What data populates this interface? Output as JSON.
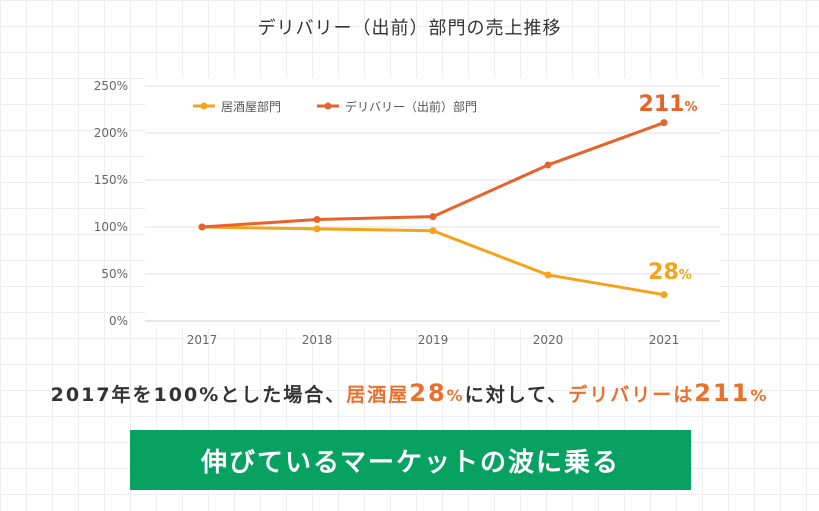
{
  "chart_data": {
    "type": "line",
    "title": "デリバリー（出前）部門の売上推移",
    "categories": [
      "2017",
      "2018",
      "2019",
      "2020",
      "2021"
    ],
    "series": [
      {
        "name": "居酒屋部門",
        "values": [
          100,
          98,
          96,
          49,
          28
        ],
        "color": "#f5a31a"
      },
      {
        "name": "デリバリー（出前）部門",
        "values": [
          100,
          108,
          111,
          166,
          211
        ],
        "color": "#e8622c"
      }
    ],
    "ylim": [
      0,
      250
    ],
    "yticks": [
      0,
      50,
      100,
      150,
      200,
      250
    ],
    "ytick_labels": [
      "0%",
      "50%",
      "100%",
      "150%",
      "200%",
      "250%"
    ],
    "grid": true,
    "legend": "top-left",
    "annotations": [
      {
        "series": 1,
        "index": 4,
        "number": "211",
        "unit": "%",
        "color": "#e8622c"
      },
      {
        "series": 0,
        "index": 4,
        "number": "28",
        "unit": "%",
        "color": "#f5a31a"
      }
    ]
  },
  "summary": {
    "part1": "2017年を100%とした場合、",
    "izakaya": "居酒屋",
    "izakaya_value": "28",
    "percent1": "%",
    "part2": "に対して、",
    "delivery": "デリバリーは",
    "delivery_value": "211",
    "percent2": "%"
  },
  "cta": {
    "label": "伸びているマーケットの波に乗る",
    "color": "#07a162"
  }
}
